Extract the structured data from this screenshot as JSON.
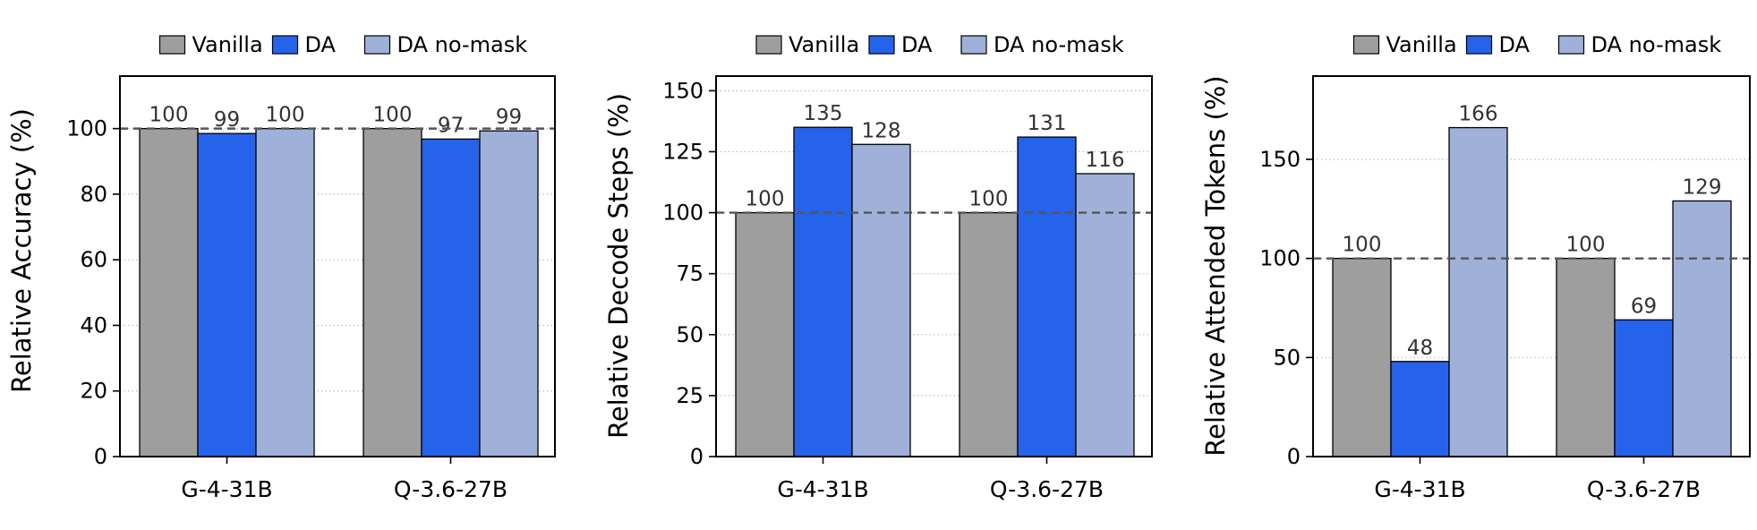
{
  "chart_data": [
    {
      "type": "bar",
      "categories": [
        "G-4-31B",
        "Q-3.6-27B"
      ],
      "series": [
        {
          "name": "Vanilla",
          "values": [
            100,
            100
          ],
          "labels": [
            "100",
            "100"
          ]
        },
        {
          "name": "DA",
          "values": [
            98.5,
            96.8
          ],
          "labels": [
            "99",
            "97"
          ]
        },
        {
          "name": "DA no-mask",
          "values": [
            100,
            99.3
          ],
          "labels": [
            "100",
            "99"
          ]
        }
      ],
      "ylabel": "Relative Accuracy (%)",
      "ylim": [
        0,
        116
      ],
      "yticks": [
        "0",
        "20",
        "40",
        "60",
        "80",
        "100"
      ],
      "reference_line": 100,
      "grid": "horizontal dotted",
      "legend": "top-center"
    },
    {
      "type": "bar",
      "categories": [
        "G-4-31B",
        "Q-3.6-27B"
      ],
      "series": [
        {
          "name": "Vanilla",
          "values": [
            100,
            100
          ],
          "labels": [
            "100",
            "100"
          ]
        },
        {
          "name": "DA",
          "values": [
            135,
            131
          ],
          "labels": [
            "135",
            "131"
          ]
        },
        {
          "name": "DA no-mask",
          "values": [
            128,
            116
          ],
          "labels": [
            "128",
            "116"
          ]
        }
      ],
      "ylabel": "Relative Decode Steps (%)",
      "ylim": [
        0,
        156
      ],
      "yticks": [
        "0",
        "25",
        "50",
        "75",
        "100",
        "125",
        "150"
      ],
      "reference_line": 100,
      "grid": "horizontal dotted",
      "legend": "top-center"
    },
    {
      "type": "bar",
      "categories": [
        "G-4-31B",
        "Q-3.6-27B"
      ],
      "series": [
        {
          "name": "Vanilla",
          "values": [
            100,
            100
          ],
          "labels": [
            "100",
            "100"
          ]
        },
        {
          "name": "DA",
          "values": [
            48,
            69
          ],
          "labels": [
            "48",
            "69"
          ]
        },
        {
          "name": "DA no-mask",
          "values": [
            166,
            129
          ],
          "labels": [
            "166",
            "129"
          ]
        }
      ],
      "ylabel": "Relative Attended Tokens (%)",
      "ylim": [
        0,
        192
      ],
      "yticks": [
        "0",
        "50",
        "100",
        "150"
      ],
      "reference_line": 100,
      "grid": "horizontal dotted",
      "legend": "top-center"
    }
  ],
  "colors": {
    "Vanilla": "#9e9e9e",
    "DA": "#2563eb",
    "DA no-mask": "#9fb1d9",
    "axis": "#000000",
    "text": "#333333",
    "grid": "#bbbbbb",
    "reference": "#555555"
  }
}
